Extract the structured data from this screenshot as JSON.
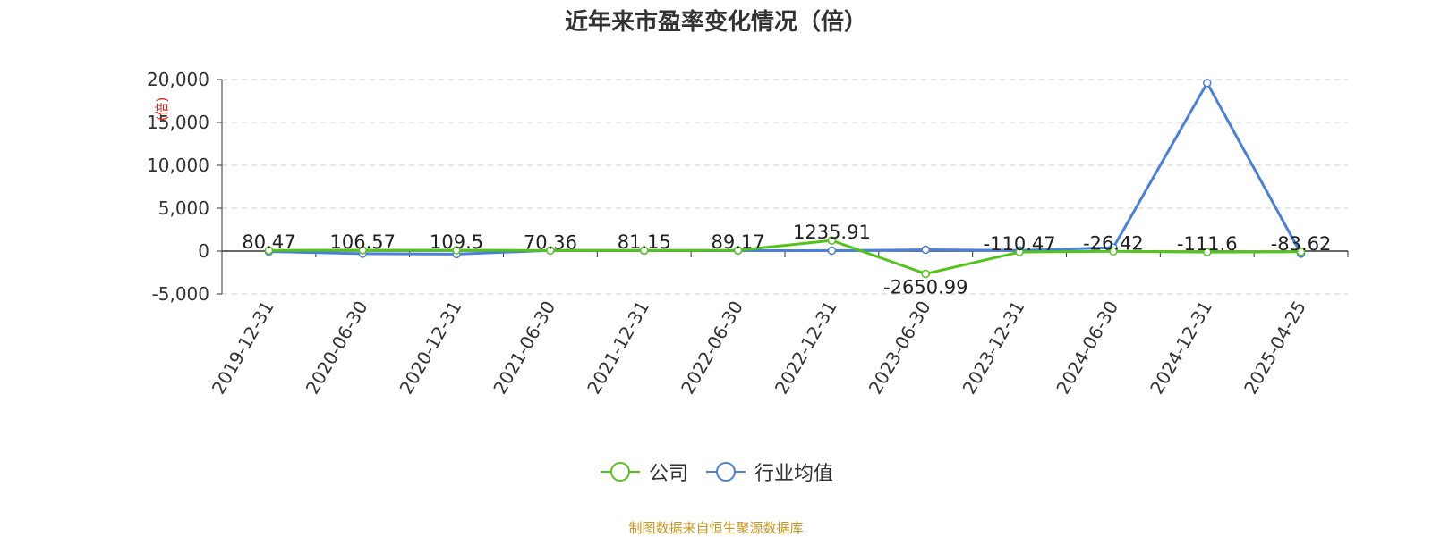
{
  "chart_data": {
    "type": "line",
    "title": "近年来市盈率变化情况（倍）",
    "unit": "(倍)",
    "categories": [
      "2019-12-31",
      "2020-06-30",
      "2020-12-31",
      "2021-06-30",
      "2021-12-31",
      "2022-06-30",
      "2022-12-31",
      "2023-06-30",
      "2023-12-31",
      "2024-06-30",
      "2024-12-31",
      "2025-04-25"
    ],
    "series": [
      {
        "name": "公司",
        "color": "#52c41a",
        "values": [
          80.47,
          106.57,
          109.5,
          70.36,
          81.15,
          89.17,
          1235.91,
          -2650.99,
          -110.47,
          -26.42,
          -111.6,
          -83.62
        ],
        "labels": [
          "80.47",
          "106.57",
          "109.5",
          "70.36",
          "81.15",
          "89.17",
          "1235.91",
          "-2650.99",
          "-110.47",
          "-26.42",
          "-111.6",
          "-83.62"
        ]
      },
      {
        "name": "行业均值",
        "color": "#4a7fdc",
        "values": [
          -50,
          -300,
          -350,
          80,
          60,
          70,
          50,
          150,
          80,
          400,
          19600,
          -300
        ]
      }
    ],
    "yticks": [
      -5000,
      0,
      5000,
      10000,
      15000,
      20000
    ],
    "ytick_labels": [
      "-5,000",
      "0",
      "5,000",
      "10,000",
      "15,000",
      "20,000"
    ],
    "ylim": [
      -5000,
      20000
    ],
    "grid": true,
    "legend_position": "bottom-center",
    "source_note": "制图数据来自恒生聚源数据库"
  }
}
